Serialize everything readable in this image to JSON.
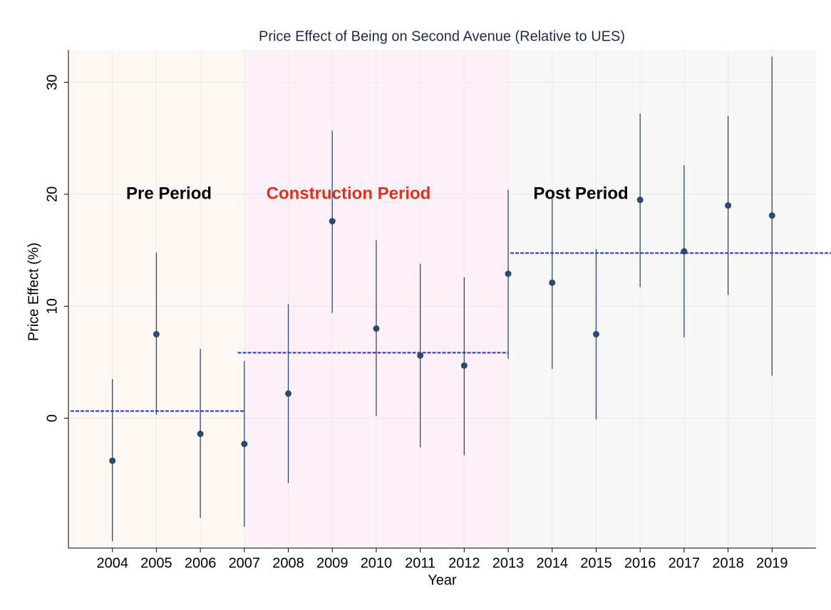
{
  "chart_data": {
    "type": "scatter",
    "title": "Price Effect of Being on Second Avenue (Relative to UES)",
    "x_label": "Year",
    "y_label": "Price Effect (%)",
    "x": [
      2004,
      2005,
      2006,
      2007,
      2008,
      2009,
      2010,
      2011,
      2012,
      2013,
      2014,
      2015,
      2016,
      2017,
      2018,
      2019
    ],
    "values": [
      -3.8,
      7.5,
      -1.4,
      -2.3,
      2.2,
      17.6,
      8.0,
      5.6,
      4.7,
      12.9,
      12.1,
      7.5,
      19.5,
      14.9,
      19.0,
      18.1
    ],
    "lower": [
      -11.0,
      0.3,
      -8.9,
      -9.7,
      -5.8,
      9.4,
      0.2,
      -2.6,
      -3.3,
      5.3,
      4.4,
      -0.1,
      11.7,
      7.2,
      11.0,
      3.8
    ],
    "upper": [
      3.5,
      14.8,
      6.2,
      5.1,
      10.2,
      25.7,
      15.9,
      13.8,
      12.6,
      20.4,
      19.8,
      15.1,
      27.2,
      22.6,
      27.0,
      32.3
    ],
    "color": "#2b4a6f",
    "xlim": [
      2003,
      2020
    ],
    "xticks": [
      2004,
      2005,
      2006,
      2007,
      2008,
      2009,
      2010,
      2011,
      2012,
      2013,
      2014,
      2015,
      2016,
      2017,
      2018,
      2019
    ],
    "ylim": [
      -11.6,
      32.9
    ],
    "yticks": [
      0,
      10,
      20,
      30
    ],
    "grid": true,
    "periods": [
      {
        "name": "Pre Period",
        "start": 2003,
        "end": 2007,
        "color": "#fdf8f3",
        "label_color": "#000000",
        "mean": 0.64,
        "mean_x": [
          2003.05,
          2007
        ]
      },
      {
        "name": "Construction Period",
        "start": 2007,
        "end": 2013,
        "color": "#fdf1f7",
        "label_color": "#e0301e",
        "mean": 5.85,
        "mean_x": [
          2006.85,
          2013
        ]
      },
      {
        "name": "Post Period",
        "start": 2013,
        "end": 2020,
        "color": "#f7f7f7",
        "label_color": "#000000",
        "mean": 14.75,
        "mean_x": [
          2013.05,
          2020.34
        ]
      }
    ],
    "mean_line_color": "#1f2fd6"
  }
}
